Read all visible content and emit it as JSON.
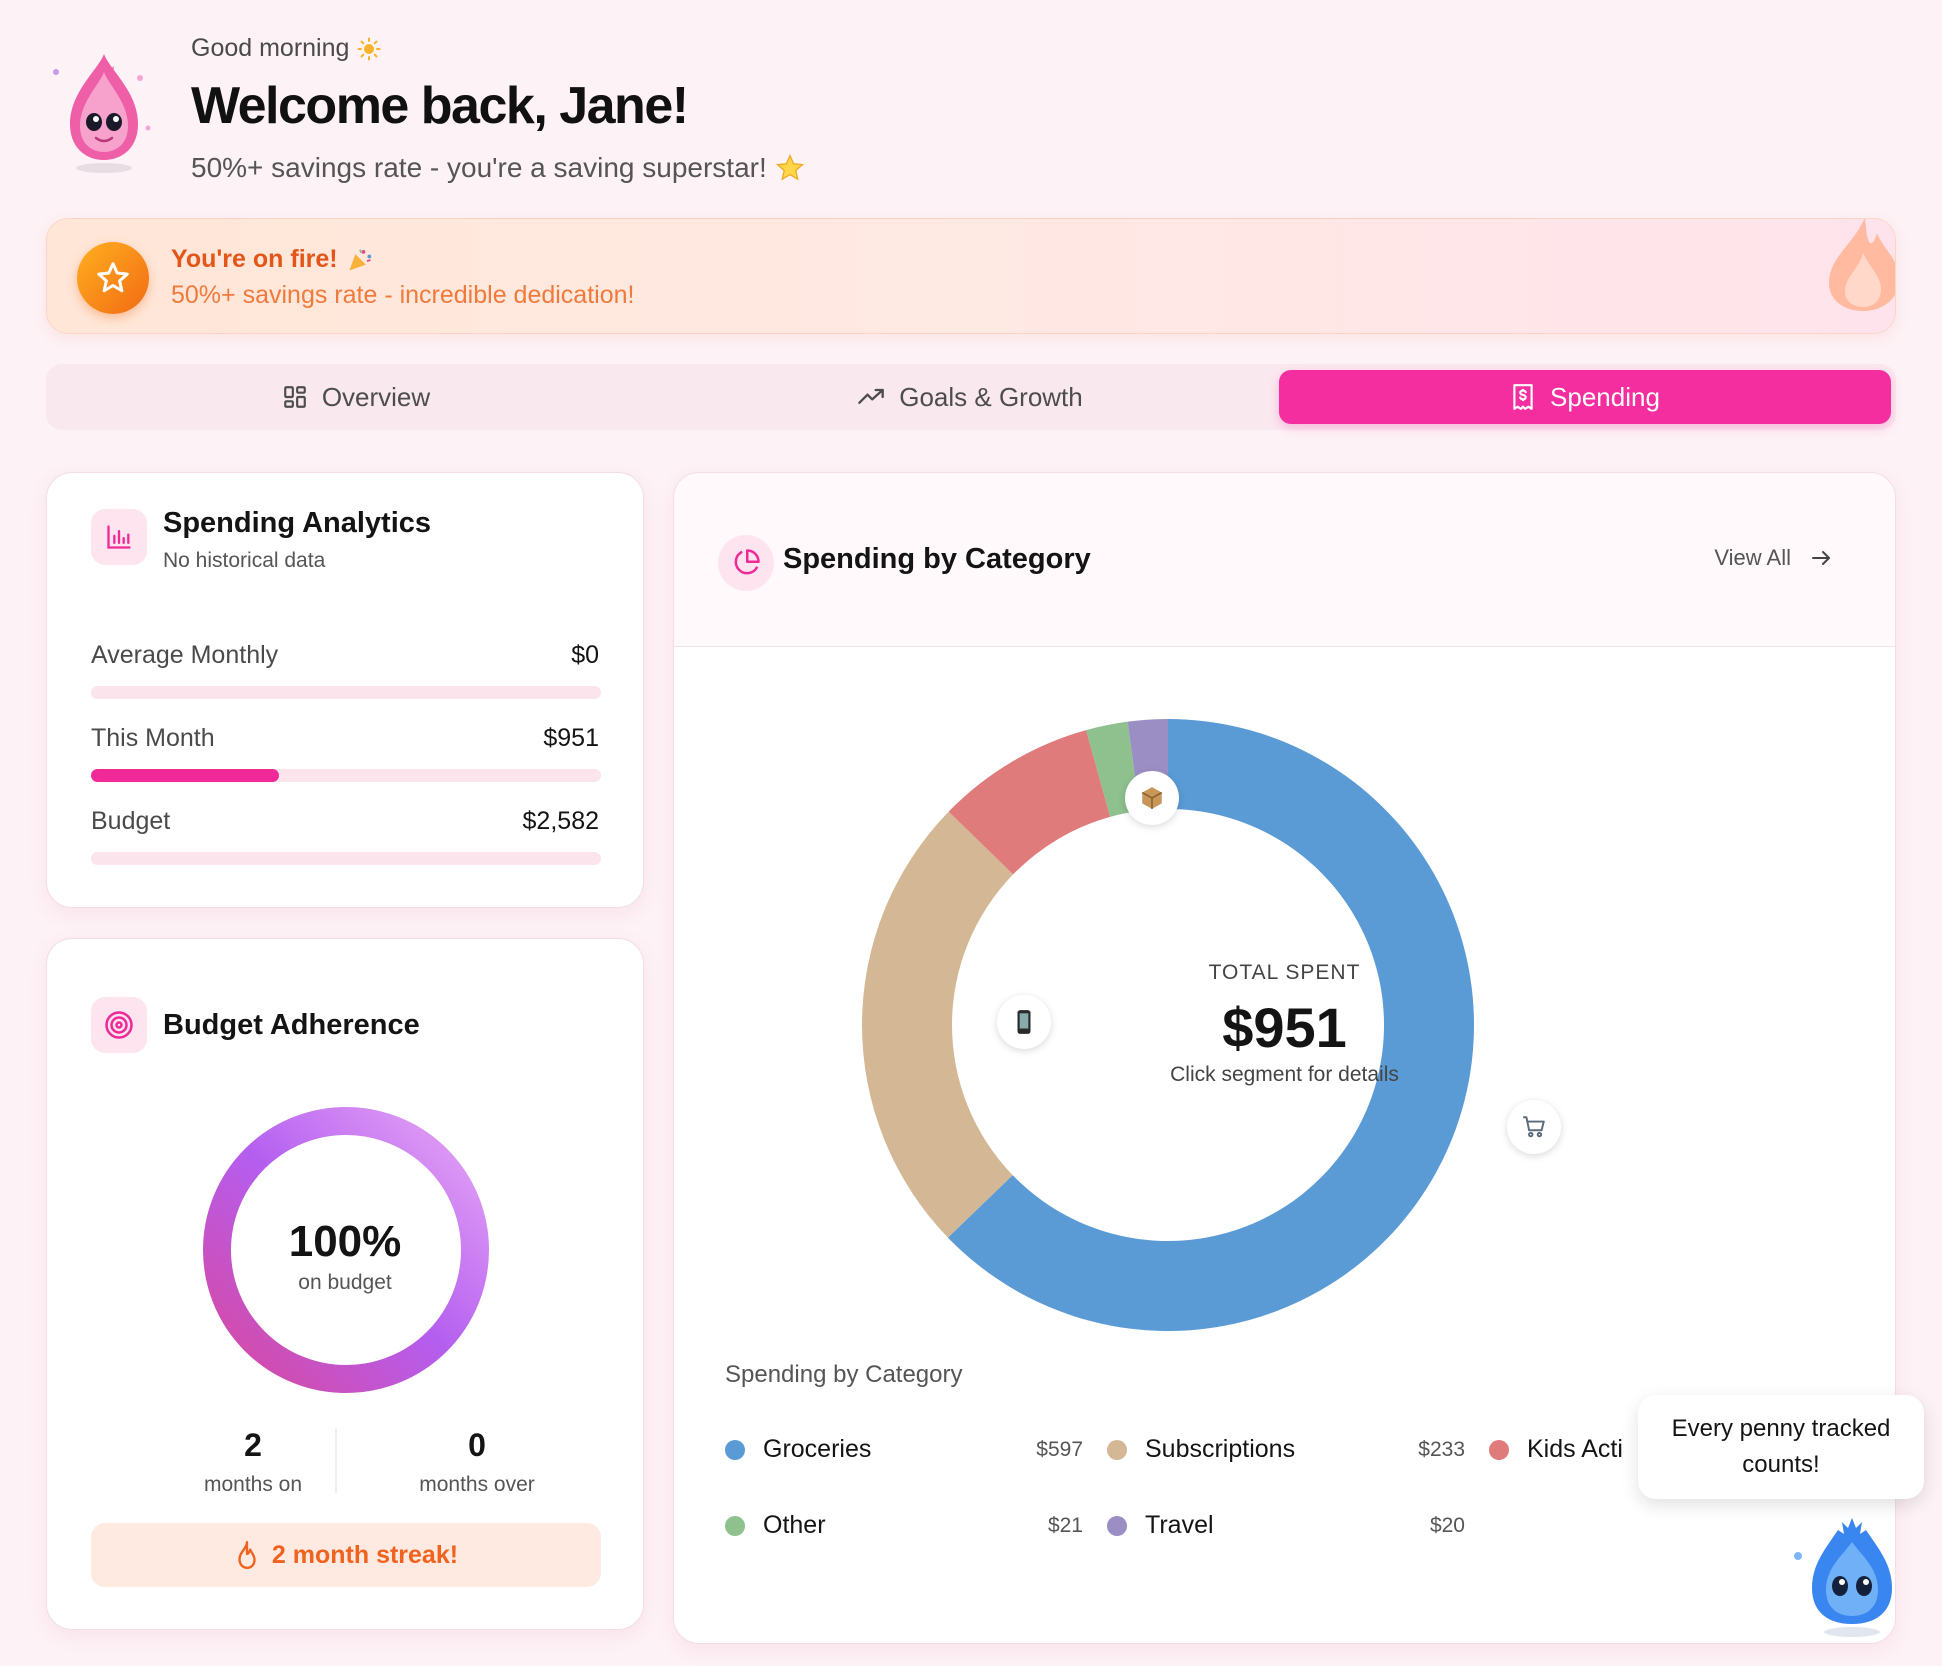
{
  "header": {
    "greeting": "Good morning",
    "welcome": "Welcome back, Jane!",
    "subtitle": "50%+ savings rate - you're a saving superstar!"
  },
  "banner": {
    "title": "You're on fire!",
    "subtitle": "50%+ savings rate - incredible dedication!"
  },
  "tabs": [
    {
      "label": "Overview",
      "icon": "grid-icon",
      "active": false
    },
    {
      "label": "Goals & Growth",
      "icon": "trend-up-icon",
      "active": false
    },
    {
      "label": "Spending",
      "icon": "receipt-dollar-icon",
      "active": true
    }
  ],
  "analytics": {
    "title": "Spending Analytics",
    "subtitle": "No historical data",
    "rows": [
      {
        "label": "Average Monthly",
        "value": "$0",
        "progress": 0
      },
      {
        "label": "This Month",
        "value": "$951",
        "progress": 0.368
      },
      {
        "label": "Budget",
        "value": "$2,582",
        "progress": 0
      }
    ]
  },
  "adherence": {
    "title": "Budget Adherence",
    "percent": "100%",
    "percent_label": "on budget",
    "months_on": "2",
    "months_on_label": "months on",
    "months_over": "0",
    "months_over_label": "months over",
    "streak": "2 month streak!"
  },
  "category": {
    "title": "Spending by Category",
    "view_all": "View All",
    "total_label": "TOTAL SPENT",
    "total_value": "$951",
    "hint": "Click segment for details",
    "legend_title": "Spending by Category"
  },
  "chart_data": {
    "type": "pie",
    "categories": [
      "Groceries",
      "Subscriptions",
      "Kids Acti",
      "Other",
      "Travel"
    ],
    "values": [
      597,
      233,
      80,
      21,
      20
    ],
    "colors": [
      "#5b9bd5",
      "#d4b896",
      "#e07b7b",
      "#8fc18f",
      "#9b8ec4"
    ],
    "value_labels": [
      "$597",
      "$233",
      "",
      "$21",
      "$20"
    ],
    "total": 951
  },
  "mascot": {
    "tooltip_line1": "Every penny tracked",
    "tooltip_line2": "counts!"
  },
  "colors": {
    "accent": "#f52ea0",
    "background": "#fdf2f6",
    "streak": "#f0621e"
  }
}
